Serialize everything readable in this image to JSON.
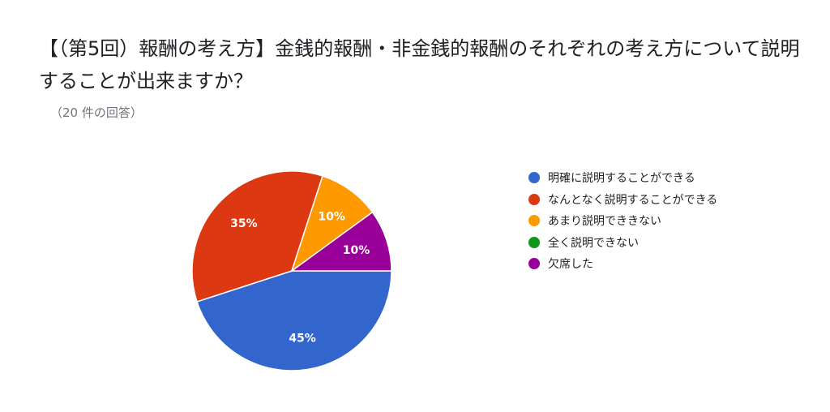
{
  "chart_data": {
    "type": "pie",
    "title": "【（第5回）報酬の考え方】金銭的報酬・非金銭的報酬のそれぞれの考え方について説明することが出来ますか？",
    "subtitle": "（20 件の回答）",
    "slices": [
      {
        "name": "明確に説明することができる",
        "value": 45,
        "label": "45%",
        "color": "#3366cc"
      },
      {
        "name": "なんとなく説明することができる",
        "value": 35,
        "label": "35%",
        "color": "#dc3912"
      },
      {
        "name": "あまり説明でききない",
        "value": 10,
        "label": "10%",
        "color": "#ff9900"
      },
      {
        "name": "全く説明できない",
        "value": 0,
        "label": "",
        "color": "#109618"
      },
      {
        "name": "欠席した",
        "value": 10,
        "label": "10%",
        "color": "#990099"
      }
    ],
    "legend_position": "right"
  }
}
